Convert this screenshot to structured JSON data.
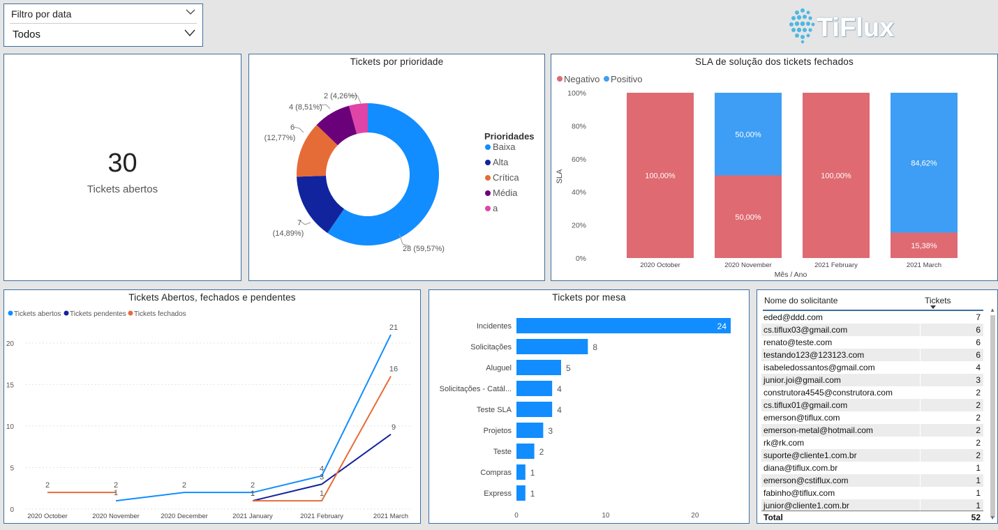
{
  "slicer": {
    "label": "Filtro por data",
    "value": "Todos"
  },
  "logo": {
    "text": "TiFlux"
  },
  "kpi": {
    "value": "30",
    "caption": "Tickets abertos"
  },
  "donut": {
    "title": "Tickets por prioridade",
    "legend_title": "Prioridades",
    "labels": [
      "28 (59,57%)",
      "7",
      "(14,89%)",
      "6",
      "(12,77%)",
      "4 (8,51%)",
      "2 (4,26%)"
    ]
  },
  "sla": {
    "title": "SLA de solução dos tickets fechados",
    "legend": [
      "Negativo",
      "Positivo"
    ],
    "ylabel": "SLA",
    "xlabel": "Mês / Ano"
  },
  "line": {
    "title": "Tickets Abertos, fechados e pendentes",
    "legend": [
      "Tickets abertos",
      "Tickets pendentes",
      "Tickets fechados"
    ]
  },
  "bars": {
    "title": "Tickets por mesa"
  },
  "table": {
    "headers": [
      "Nome do solicitante",
      "Tickets"
    ],
    "rows": [
      [
        "eded@ddd.com",
        "7"
      ],
      [
        "cs.tiflux03@gmail.com",
        "6"
      ],
      [
        "renato@teste.com",
        "6"
      ],
      [
        "testando123@123123.com",
        "6"
      ],
      [
        "isabeledossantos@gmail.com",
        "4"
      ],
      [
        "junior.joi@gmail.com",
        "3"
      ],
      [
        "construtora4545@construtora.com",
        "2"
      ],
      [
        "cs.tiflux01@gmail.com",
        "2"
      ],
      [
        "emerson@tiflux.com",
        "2"
      ],
      [
        "emerson-metal@hotmail.com",
        "2"
      ],
      [
        "rk@rk.com",
        "2"
      ],
      [
        "suporte@cliente1.com.br",
        "2"
      ],
      [
        "diana@tiflux.com.br",
        "1"
      ],
      [
        "emerson@cstiflux.com",
        "1"
      ],
      [
        "fabinho@tiflux.com",
        "1"
      ],
      [
        "junior@cliente1.com.br",
        "1"
      ]
    ],
    "total_label": "Total",
    "total_value": "52"
  },
  "colors": {
    "blue": "#118dff",
    "navy": "#12239e",
    "orange": "#e66c37",
    "purple": "#6b007b",
    "pink": "#e044a7",
    "sla_neg": "#df6a72",
    "sla_pos": "#3e9ef5",
    "line_blue": "#118dff"
  },
  "chart_data": [
    {
      "type": "pie",
      "title": "Tickets por prioridade",
      "legend_title": "Prioridades",
      "categories": [
        "Baixa",
        "Alta",
        "Crítica",
        "Média",
        "a"
      ],
      "values": [
        28,
        7,
        6,
        4,
        2
      ],
      "percent_labels": [
        "59,57%",
        "14,89%",
        "12,77%",
        "8,51%",
        "4,26%"
      ],
      "legend_position": "right"
    },
    {
      "type": "bar",
      "title": "SLA de solução dos tickets fechados",
      "categories": [
        "2020 October",
        "2020 November",
        "2021 February",
        "2021 March"
      ],
      "series": [
        {
          "name": "Negativo",
          "values": [
            100,
            50,
            100,
            15.38
          ]
        },
        {
          "name": "Positivo",
          "values": [
            0,
            50,
            0,
            84.62
          ]
        }
      ],
      "data_labels": [
        [
          "100,00%",
          "50,00%",
          "100,00%",
          "15,38%"
        ],
        [
          "",
          "50,00%",
          "",
          "84,62%"
        ]
      ],
      "stacked": true,
      "ylabel": "SLA",
      "xlabel": "Mês / Ano",
      "ylim": [
        0,
        100
      ],
      "yticks": [
        "0%",
        "20%",
        "40%",
        "60%",
        "80%",
        "100%"
      ],
      "legend_position": "top-left"
    },
    {
      "type": "line",
      "title": "Tickets Abertos, fechados e pendentes",
      "categories": [
        "2020 October",
        "2020 November",
        "2020 December",
        "2021 January",
        "2021 February",
        "2021 March"
      ],
      "series": [
        {
          "name": "Tickets abertos",
          "values": [
            null,
            1,
            2,
            2,
            4,
            21
          ]
        },
        {
          "name": "Tickets pendentes",
          "values": [
            null,
            null,
            null,
            1,
            3,
            9
          ]
        },
        {
          "name": "Tickets fechados",
          "values": [
            2,
            2,
            null,
            1,
            1,
            16
          ]
        }
      ],
      "point_labels": [
        [
          "",
          "1",
          "2",
          "2",
          "4",
          "21"
        ],
        [
          "",
          "",
          "",
          "1",
          "3",
          "9"
        ],
        [
          "2",
          "2",
          "",
          "1",
          "1",
          "16"
        ]
      ],
      "ylim": [
        0,
        22
      ],
      "yticks": [
        0,
        5,
        10,
        15,
        20
      ],
      "legend_position": "top-left"
    },
    {
      "type": "bar",
      "orientation": "horizontal",
      "title": "Tickets por mesa",
      "categories": [
        "Incidentes",
        "Solicitações",
        "Aluguel",
        "Solicitações - Catál...",
        "Teste SLA",
        "Projetos",
        "Teste",
        "Compras",
        "Express"
      ],
      "values": [
        24,
        8,
        5,
        4,
        4,
        3,
        2,
        1,
        1
      ],
      "xlim": [
        0,
        24
      ],
      "xticks": [
        0,
        10,
        20
      ]
    }
  ]
}
